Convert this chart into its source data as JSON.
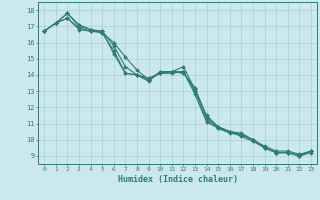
{
  "xlabel": "Humidex (Indice chaleur)",
  "xlim": [
    -0.5,
    23.5
  ],
  "ylim": [
    8.5,
    18.5
  ],
  "xticks": [
    0,
    1,
    2,
    3,
    4,
    5,
    6,
    7,
    8,
    9,
    10,
    11,
    12,
    13,
    14,
    15,
    16,
    17,
    18,
    19,
    20,
    21,
    22,
    23
  ],
  "yticks": [
    9,
    10,
    11,
    12,
    13,
    14,
    15,
    16,
    17,
    18
  ],
  "line_color": "#2e7d6e",
  "bg_color": "#cce8ef",
  "grid_color": "#aacdd8",
  "lines": [
    [
      0,
      16.7,
      1,
      17.2,
      2,
      17.5,
      3,
      16.9,
      4,
      16.7,
      5,
      16.7,
      6,
      15.3,
      7,
      14.1,
      8,
      14.0,
      9,
      13.8,
      10,
      14.1,
      11,
      14.2,
      12,
      14.2,
      13,
      12.8,
      14,
      11.1,
      15,
      10.7,
      16,
      10.5,
      17,
      10.4,
      18,
      10.0,
      19,
      9.6,
      20,
      9.3,
      21,
      9.3,
      22,
      9.1,
      23,
      9.3
    ],
    [
      0,
      16.7,
      1,
      17.2,
      2,
      17.5,
      3,
      16.8,
      4,
      16.7,
      5,
      16.6,
      6,
      15.5,
      7,
      14.1,
      8,
      14.0,
      9,
      13.6,
      10,
      14.2,
      11,
      14.2,
      12,
      14.1,
      13,
      13.2,
      14,
      11.4,
      15,
      10.7,
      16,
      10.4,
      17,
      10.3,
      18,
      10.0,
      19,
      9.5,
      20,
      9.2,
      21,
      9.2,
      22,
      9.0,
      23,
      9.3
    ],
    [
      0,
      16.7,
      1,
      17.2,
      2,
      17.8,
      3,
      17.0,
      4,
      16.8,
      5,
      16.7,
      6,
      15.8,
      7,
      14.5,
      8,
      14.0,
      9,
      13.7,
      10,
      14.2,
      11,
      14.2,
      12,
      14.5,
      13,
      13.1,
      14,
      11.5,
      15,
      10.8,
      16,
      10.5,
      17,
      10.3,
      18,
      10.0,
      19,
      9.5,
      20,
      9.2,
      21,
      9.2,
      22,
      9.0,
      23,
      9.3
    ],
    [
      0,
      16.7,
      1,
      17.2,
      2,
      17.8,
      3,
      17.1,
      4,
      16.8,
      5,
      16.6,
      6,
      16.0,
      7,
      15.1,
      8,
      14.3,
      9,
      13.7,
      10,
      14.1,
      11,
      14.1,
      12,
      14.2,
      13,
      13.0,
      14,
      11.2,
      15,
      10.8,
      16,
      10.5,
      17,
      10.2,
      18,
      9.9,
      19,
      9.5,
      20,
      9.2,
      21,
      9.2,
      22,
      9.0,
      23,
      9.2
    ]
  ]
}
